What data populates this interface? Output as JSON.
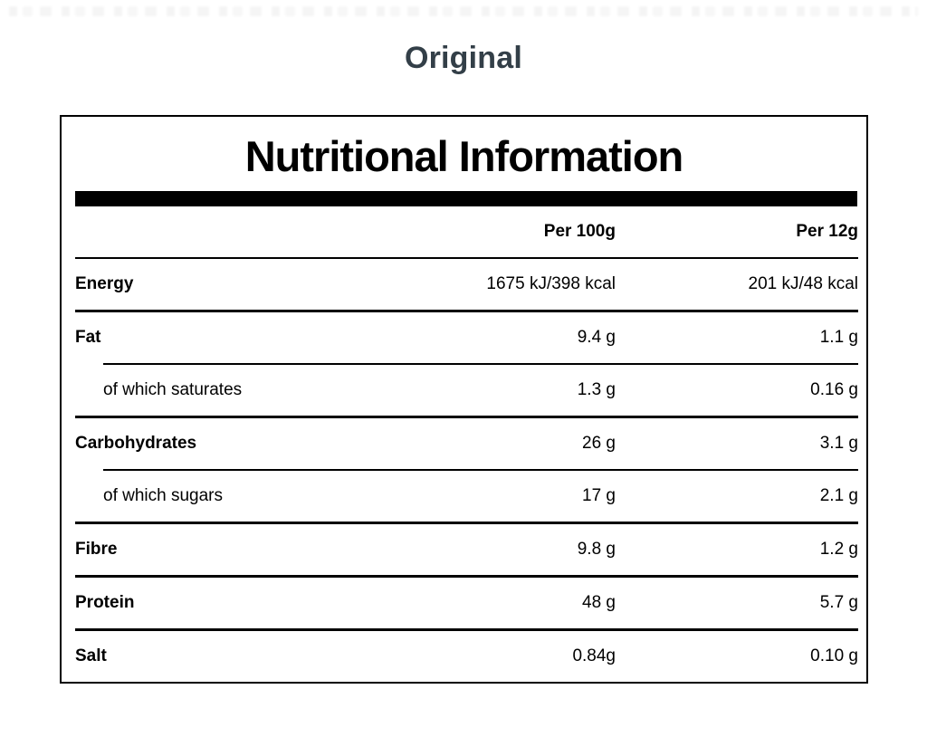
{
  "page": {
    "flavour_title": "Original"
  },
  "panel": {
    "title": "Nutritional Information",
    "columns": [
      "",
      "Per 100g",
      "Per 12g"
    ],
    "rows": [
      {
        "label": "Energy",
        "per_100g": "1675 kJ/398 kcal",
        "per_12g": "201 kJ/48 kcal"
      },
      {
        "label": "Fat",
        "per_100g": "9.4 g",
        "per_12g": "1.1 g"
      },
      {
        "label": "of which saturates",
        "per_100g": "1.3 g",
        "per_12g": "0.16 g"
      },
      {
        "label": "Carbohydrates",
        "per_100g": "26 g",
        "per_12g": "3.1 g"
      },
      {
        "label": "of which sugars",
        "per_100g": "17 g",
        "per_12g": "2.1 g"
      },
      {
        "label": "Fibre",
        "per_100g": "9.8 g",
        "per_12g": "1.2 g"
      },
      {
        "label": "Protein",
        "per_100g": "48 g",
        "per_12g": "5.7 g"
      },
      {
        "label": "Salt",
        "per_100g": "0.84g",
        "per_12g": "0.10 g"
      }
    ]
  },
  "colors": {
    "flavour_title": "#333F48",
    "text": "#000000",
    "bar": "#000000",
    "background": "#FFFFFF"
  }
}
